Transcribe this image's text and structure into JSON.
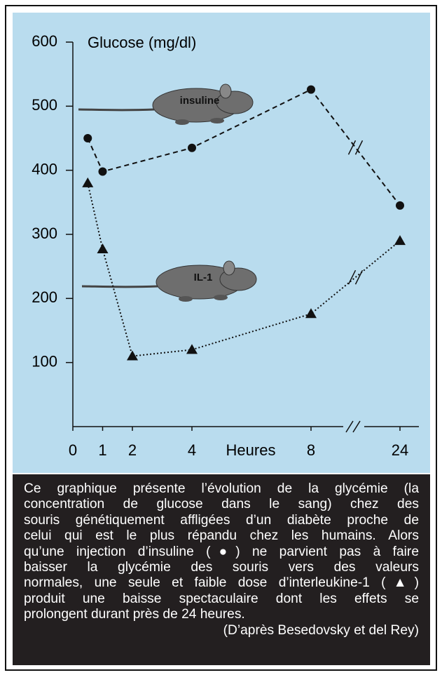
{
  "chart_data": {
    "type": "line",
    "y_label": "Glucose (mg/dl)",
    "x_label": "Heures",
    "ylim": [
      0,
      600
    ],
    "yticks": [
      100,
      200,
      300,
      400,
      500,
      600
    ],
    "xlim": [
      0,
      24
    ],
    "xticks": [
      0,
      1,
      2,
      4,
      8,
      24
    ],
    "axis_break": true,
    "background": "#b9dcee",
    "series": [
      {
        "name": "insuline",
        "marker": "circle",
        "style": "dashed",
        "color": "#111111",
        "x": [
          0.5,
          1,
          4,
          8,
          24
        ],
        "values": [
          450,
          398,
          435,
          526,
          345
        ]
      },
      {
        "name": "IL-1",
        "marker": "triangle",
        "style": "dotted",
        "color": "#111111",
        "x": [
          0.5,
          1,
          2,
          4,
          8,
          24
        ],
        "values": [
          380,
          277,
          110,
          120,
          176,
          290
        ]
      }
    ],
    "caption_lines": [
      "Ce graphique présente l’évolution de la glycémie (la",
      "concentration de glucose dans le sang) chez des",
      "souris génétiquement affligées d’un diabète proche de",
      "celui qui est le plus répandu chez les humains. Alors",
      "qu’une injection d’insuline (●) ne parvient pas à faire",
      "baisser la glycémie des souris vers des valeurs",
      "normales, une seule et faible dose d’interleukine-1 (▲)",
      "produit une baisse spectaculaire dont les effets se",
      "prolongent durant près de 24 heures."
    ],
    "source": "(D’après Besedovsky et del Rey)"
  }
}
